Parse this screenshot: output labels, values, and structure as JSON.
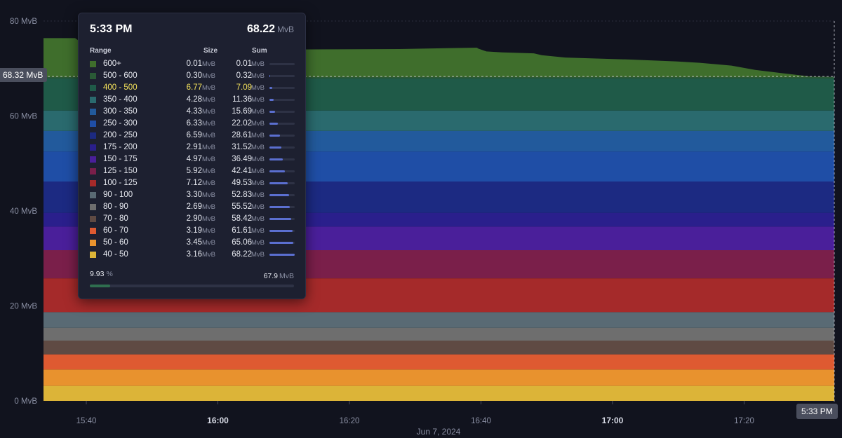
{
  "chart_data": {
    "type": "area",
    "stacked": true,
    "ylim": [
      0,
      80
    ],
    "y_ticks": [
      "0 MvB",
      "20 MvB",
      "40 MvB",
      "60 MvB",
      "80 MvB"
    ],
    "x_ticks": [
      {
        "label": "15:40",
        "bold": false
      },
      {
        "label": "16:00",
        "bold": true
      },
      {
        "label": "16:20",
        "bold": false
      },
      {
        "label": "16:40",
        "bold": false
      },
      {
        "label": "17:00",
        "bold": true
      },
      {
        "label": "17:20",
        "bold": false
      }
    ],
    "x_date_label": "Jun 7, 2024",
    "hover_y_label": "68.32 MvB",
    "hover_x_label": "5:33 PM",
    "series": [
      {
        "name": "40 - 50",
        "color": "#dcb438",
        "value": 3.16
      },
      {
        "name": "50 - 60",
        "color": "#e8922e",
        "value": 3.45
      },
      {
        "name": "60 - 70",
        "color": "#de5a31",
        "value": 3.19
      },
      {
        "name": "70 - 80",
        "color": "#5f4a43",
        "value": 2.9
      },
      {
        "name": "80 - 90",
        "color": "#6e6e6e",
        "value": 2.69
      },
      {
        "name": "90 - 100",
        "color": "#596a74",
        "value": 3.3
      },
      {
        "name": "100 - 125",
        "color": "#a52a2a",
        "value": 7.12
      },
      {
        "name": "125 - 150",
        "color": "#7a1f4a",
        "value": 5.92
      },
      {
        "name": "150 - 175",
        "color": "#4a1f9a",
        "value": 4.97
      },
      {
        "name": "175 - 200",
        "color": "#2a1f8c",
        "value": 2.91
      },
      {
        "name": "200 - 250",
        "color": "#1c2a82",
        "value": 6.59
      },
      {
        "name": "250 - 300",
        "color": "#1f4ea6",
        "value": 6.33
      },
      {
        "name": "300 - 350",
        "color": "#225a9c",
        "value": 4.33
      },
      {
        "name": "350 - 400",
        "color": "#2a6a6e",
        "value": 4.28
      },
      {
        "name": "400 - 500",
        "color": "#1f5a48",
        "value": 6.77
      },
      {
        "name": "500 - 600",
        "color": "#2a5a36",
        "value": 0.3
      },
      {
        "name": "600+",
        "color": "#3f6e2c",
        "value": 0.01
      }
    ],
    "top_envelope": [
      {
        "t": 0,
        "v": 76.4
      },
      {
        "t": 0.04,
        "v": 76.4
      },
      {
        "t": 0.05,
        "v": 75.2
      },
      {
        "t": 0.11,
        "v": 74.1
      },
      {
        "t": 0.3,
        "v": 74.0
      },
      {
        "t": 0.45,
        "v": 74.1
      },
      {
        "t": 0.55,
        "v": 74.4
      },
      {
        "t": 0.548,
        "v": 74.3
      },
      {
        "t": 0.56,
        "v": 73.6
      },
      {
        "t": 0.58,
        "v": 73.4
      },
      {
        "t": 0.62,
        "v": 73.2
      },
      {
        "t": 0.63,
        "v": 72.8
      },
      {
        "t": 0.66,
        "v": 72.3
      },
      {
        "t": 0.74,
        "v": 71.9
      },
      {
        "t": 0.8,
        "v": 71.5
      },
      {
        "t": 0.83,
        "v": 71.2
      },
      {
        "t": 0.87,
        "v": 70.6
      },
      {
        "t": 0.9,
        "v": 69.7
      },
      {
        "t": 0.93,
        "v": 69.1
      },
      {
        "t": 0.97,
        "v": 68.3
      },
      {
        "t": 1.0,
        "v": 68.22
      }
    ]
  },
  "tooltip": {
    "time": "5:33 PM",
    "total": "68.22",
    "total_unit": "MvB",
    "col_range": "Range",
    "col_size": "Size",
    "col_sum": "Sum",
    "unit": "MvB",
    "highlight_index": 2,
    "rows": [
      {
        "range": "600+",
        "size": "0.01",
        "sum": "0.01",
        "color": "#3f6e2c"
      },
      {
        "range": "500 - 600",
        "size": "0.30",
        "sum": "0.32",
        "color": "#2a5a36"
      },
      {
        "range": "400 - 500",
        "size": "6.77",
        "sum": "7.09",
        "color": "#1f5a48"
      },
      {
        "range": "350 - 400",
        "size": "4.28",
        "sum": "11.36",
        "color": "#2a6a6e"
      },
      {
        "range": "300 - 350",
        "size": "4.33",
        "sum": "15.69",
        "color": "#225a9c"
      },
      {
        "range": "250 - 300",
        "size": "6.33",
        "sum": "22.02",
        "color": "#1f4ea6"
      },
      {
        "range": "200 - 250",
        "size": "6.59",
        "sum": "28.61",
        "color": "#1c2a82"
      },
      {
        "range": "175 - 200",
        "size": "2.91",
        "sum": "31.52",
        "color": "#2a1f8c"
      },
      {
        "range": "150 - 175",
        "size": "4.97",
        "sum": "36.49",
        "color": "#4a1f9a"
      },
      {
        "range": "125 - 150",
        "size": "5.92",
        "sum": "42.41",
        "color": "#7a1f4a"
      },
      {
        "range": "100 - 125",
        "size": "7.12",
        "sum": "49.53",
        "color": "#a52a2a"
      },
      {
        "range": "90 - 100",
        "size": "3.30",
        "sum": "52.83",
        "color": "#596a74"
      },
      {
        "range": "80 - 90",
        "size": "2.69",
        "sum": "55.52",
        "color": "#6e6e6e"
      },
      {
        "range": "70 - 80",
        "size": "2.90",
        "sum": "58.42",
        "color": "#5f4a43"
      },
      {
        "range": "60 - 70",
        "size": "3.19",
        "sum": "61.61",
        "color": "#de5a31"
      },
      {
        "range": "50 - 60",
        "size": "3.45",
        "sum": "65.06",
        "color": "#e8922e"
      },
      {
        "range": "40 - 50",
        "size": "3.16",
        "sum": "68.22",
        "color": "#dcb438"
      }
    ],
    "footer_percent": "9.93",
    "footer_percent_unit": "%",
    "footer_value": "67.9",
    "footer_unit": "MvB",
    "footer_progress": 0.0993
  }
}
